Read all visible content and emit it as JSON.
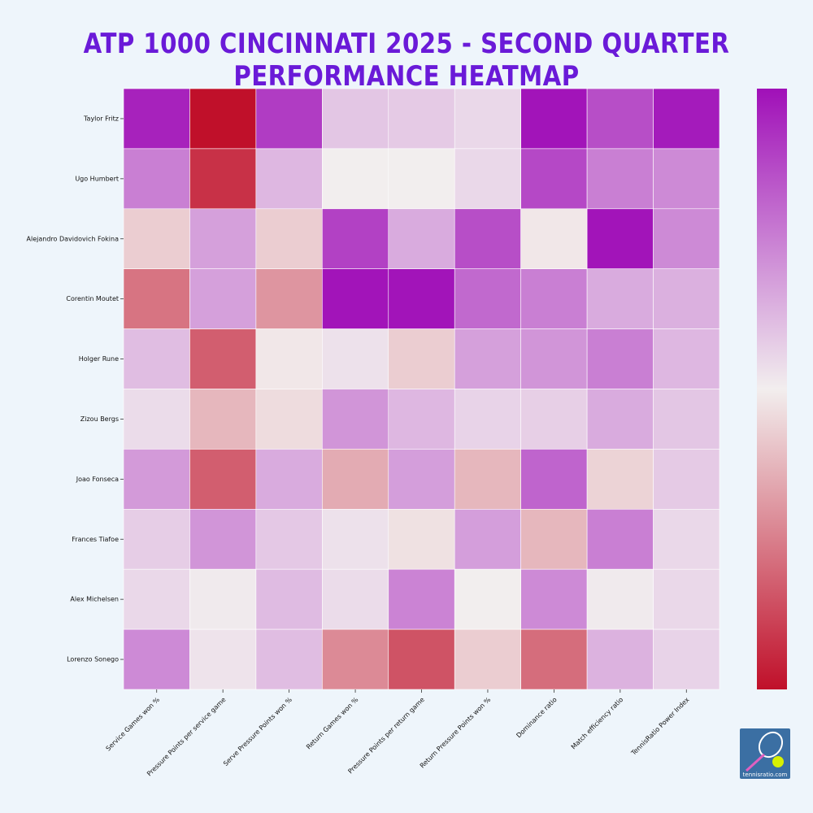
{
  "title": "ATP 1000 CINCINNATI 2025 - SECOND QUARTER PERFORMANCE HEATMAP",
  "logo_text": "tennisratio.com",
  "colors": {
    "title": "#6a1ad8",
    "background": "#eef5fb",
    "scale_low": "#c0102a",
    "scale_mid": "#f2eeee",
    "scale_high": "#a010b8"
  },
  "chart_data": {
    "type": "heatmap",
    "title": "ATP 1000 CINCINNATI 2025 - SECOND QUARTER PERFORMANCE HEATMAP",
    "xlabel": "",
    "ylabel": "",
    "colorbar": true,
    "colorbar_ticks": false,
    "grid": false,
    "value_range": [
      -1,
      1
    ],
    "columns": [
      "Service Games won %",
      "Pressure Points per service game",
      "Serve Pressure Points won %",
      "Return Games won %",
      "Pressure Points per return game",
      "Return Pressure Points won %",
      "Dominance ratio",
      "Match efficiency ratio",
      "TennisRatio Power Index"
    ],
    "rows": [
      "Taylor Fritz",
      "Ugo Humbert",
      "Alejandro Davidovich Fokina",
      "Corentin Moutet",
      "Holger Rune",
      "Zizou Bergs",
      "Joao Fonseca",
      "Frances Tiafoe",
      "Alex Michelsen",
      "Lorenzo Sonego"
    ],
    "values": [
      [
        0.92,
        -1.0,
        0.8,
        0.18,
        0.16,
        0.1,
        0.98,
        0.72,
        0.95
      ],
      [
        0.5,
        -0.85,
        0.25,
        0.0,
        0.0,
        0.1,
        0.75,
        0.5,
        0.45
      ],
      [
        -0.15,
        0.35,
        -0.15,
        0.78,
        0.3,
        0.72,
        -0.03,
        0.98,
        0.45
      ],
      [
        -0.55,
        0.35,
        -0.4,
        0.98,
        0.98,
        0.6,
        0.5,
        0.3,
        0.28
      ],
      [
        0.22,
        -0.65,
        -0.03,
        0.06,
        -0.15,
        0.35,
        0.4,
        0.5,
        0.25
      ],
      [
        0.08,
        -0.25,
        -0.08,
        0.4,
        0.25,
        0.12,
        0.14,
        0.3,
        0.18
      ],
      [
        0.38,
        -0.65,
        0.3,
        -0.3,
        0.36,
        -0.25,
        0.62,
        -0.12,
        0.16
      ],
      [
        0.15,
        0.4,
        0.17,
        0.06,
        -0.06,
        0.36,
        -0.25,
        0.5,
        0.1
      ],
      [
        0.1,
        0.02,
        0.23,
        0.08,
        0.48,
        0.0,
        0.45,
        0.02,
        0.1
      ],
      [
        0.45,
        0.05,
        0.22,
        -0.45,
        -0.7,
        -0.15,
        -0.58,
        0.27,
        0.12
      ]
    ]
  }
}
